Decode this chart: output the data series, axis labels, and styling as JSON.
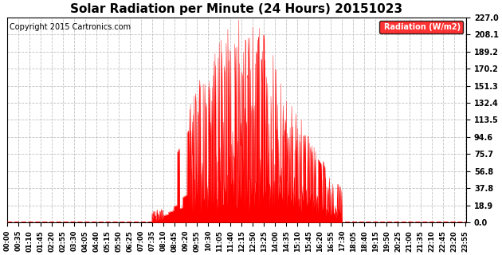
{
  "title": "Solar Radiation per Minute (24 Hours) 20151023",
  "copyright_text": "Copyright 2015 Cartronics.com",
  "legend_label": "Radiation (W/m2)",
  "yticks": [
    0.0,
    18.9,
    37.8,
    56.8,
    75.7,
    94.6,
    113.5,
    132.4,
    151.3,
    170.2,
    189.2,
    208.1,
    227.0
  ],
  "ymax": 227.0,
  "ymin": 0.0,
  "fill_color": "#FF0000",
  "line_color": "#FF0000",
  "bg_color": "#FFFFFF",
  "grid_color": "#BBBBBB",
  "zero_line_color": "#FF0000",
  "title_fontsize": 11,
  "copyright_fontsize": 7,
  "tick_fontsize": 6,
  "ytick_fontsize": 7
}
